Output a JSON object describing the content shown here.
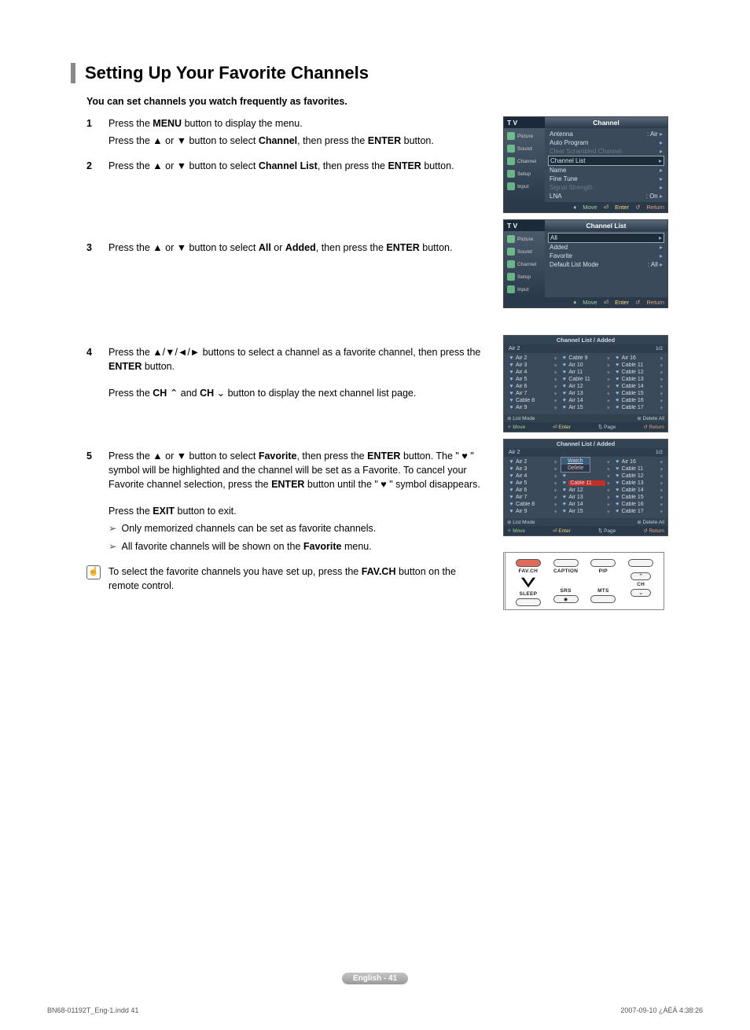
{
  "title": "Setting Up Your Favorite Channels",
  "intro": "You can set channels you watch frequently as favorites.",
  "steps": [
    {
      "num": "1",
      "lines": [
        "Press the <b>MENU</b> button to display the menu.",
        "Press the ▲ or ▼ button to select <b>Channel</b>, then press the <b>ENTER</b> button."
      ]
    },
    {
      "num": "2",
      "lines": [
        "Press the ▲ or ▼ button to select <b>Channel List</b>, then press the <b>ENTER</b> button."
      ]
    },
    {
      "num": "3",
      "lines": [
        "Press the ▲ or ▼ button to select <b>All</b> or <b>Added</b>, then press the <b>ENTER</b> button."
      ]
    },
    {
      "num": "4",
      "lines": [
        "Press the ▲/▼/◄/► buttons to select a channel as a favorite channel, then press the <b>ENTER</b> button.",
        "",
        "Press the <b>CH</b> ⌃ and <b>CH</b> ⌄ button to display the next channel list page."
      ]
    },
    {
      "num": "5",
      "lines": [
        "Press the ▲ or ▼ button to select <b>Favorite</b>, then press the <b>ENTER</b> button. The \" ♥ \" symbol will be highlighted and the channel will be set as a Favorite. To cancel your Favorite channel selection, press the <b>ENTER</b> button until the \" ♥ \" symbol disappears.",
        "",
        "Press the <b>EXIT</b> button to exit."
      ],
      "arrows": [
        "Only memorized channels can be set as favorite channels.",
        "All favorite channels will be shown on the <b>Favorite</b> menu."
      ]
    }
  ],
  "note": "To select the favorite channels you have set up, press the <b>FAV.CH</b> button on the remote control.",
  "osd1": {
    "tv": "T V",
    "header": "Channel",
    "side": [
      "Picture",
      "Sound",
      "Channel",
      "Setup",
      "Input"
    ],
    "rows": [
      {
        "l": "Antenna",
        "r": ": Air",
        "cls": ""
      },
      {
        "l": "Auto Program",
        "r": "",
        "cls": ""
      },
      {
        "l": "Clear Scrambled Channel",
        "r": "",
        "cls": "dim"
      },
      {
        "l": "Channel List",
        "r": "",
        "cls": "hl"
      },
      {
        "l": "Name",
        "r": "",
        "cls": ""
      },
      {
        "l": "Fine Tune",
        "r": "",
        "cls": ""
      },
      {
        "l": "Signal Strength",
        "r": "",
        "cls": "dim"
      },
      {
        "l": "LNA",
        "r": ": On",
        "cls": ""
      }
    ],
    "foot": {
      "m": "Move",
      "e": "Enter",
      "r": "Return"
    }
  },
  "osd2": {
    "tv": "T V",
    "header": "Channel List",
    "side": [
      "Picture",
      "Sound",
      "Channel",
      "Setup",
      "Input"
    ],
    "rows": [
      {
        "l": "All",
        "r": "",
        "cls": "hl"
      },
      {
        "l": "Added",
        "r": "",
        "cls": ""
      },
      {
        "l": "Favorite",
        "r": "",
        "cls": ""
      },
      {
        "l": "Default List Mode",
        "r": ": All",
        "cls": ""
      }
    ],
    "foot": {
      "m": "Move",
      "e": "Enter",
      "r": "Return"
    }
  },
  "chlist1": {
    "title": "Channel List / Added",
    "sub": "Air 2",
    "page": "1/2",
    "cols": [
      [
        "Air 2",
        "Air 3",
        "Air 4",
        "Air 5",
        "Air 6",
        "Air 7",
        "Cable 8",
        "Air 9"
      ],
      [
        "Cable 9",
        "Air 10",
        "Air 11",
        "Cable 11",
        "Air 12",
        "Air 13",
        "Air 14",
        "Air 15"
      ],
      [
        "Air 16",
        "Cable 11",
        "Cable 12",
        "Cable 13",
        "Cable 14",
        "Cable 15",
        "Cable 16",
        "Cable 17"
      ]
    ],
    "foot2": {
      "lm": "List Mode",
      "da": "Delete All"
    },
    "foot": {
      "mv": "Move",
      "en": "Enter",
      "pg": "Page",
      "rt": "Return"
    }
  },
  "chlist2": {
    "title": "Channel List / Added",
    "sub": "Air 2",
    "page": "1/2",
    "ctx": {
      "watch": "Watch",
      "delete": "Delete"
    },
    "cols": [
      [
        "Air 2",
        "Air 3",
        "Air 4",
        "Air 5",
        "Air 6",
        "Air 7",
        "Cable 8",
        "Air 9"
      ],
      [
        "",
        "",
        "",
        "Cable 11",
        "Air 12",
        "Air 13",
        "Air 14",
        "Air 15"
      ],
      [
        "Air 16",
        "Cable 11",
        "Cable 12",
        "Cable 13",
        "Cable 14",
        "Cable 15",
        "Cable 16",
        "Cable 17"
      ]
    ],
    "foot2": {
      "lm": "List Mode",
      "da": "Delete All"
    },
    "foot": {
      "mv": "Move",
      "en": "Enter",
      "pg": "Page",
      "rt": "Return"
    }
  },
  "remote": {
    "labels": [
      "FAV.CH",
      "CAPTION",
      "PIP",
      "",
      "SLEEP",
      "SRS",
      "MTS",
      "CH"
    ]
  },
  "footer": "English - 41",
  "colLeft": "BN68-01192T_Eng-1.indd   41",
  "colRight": "2007-09-10   ¿ÀÈÄ 4:38:26"
}
